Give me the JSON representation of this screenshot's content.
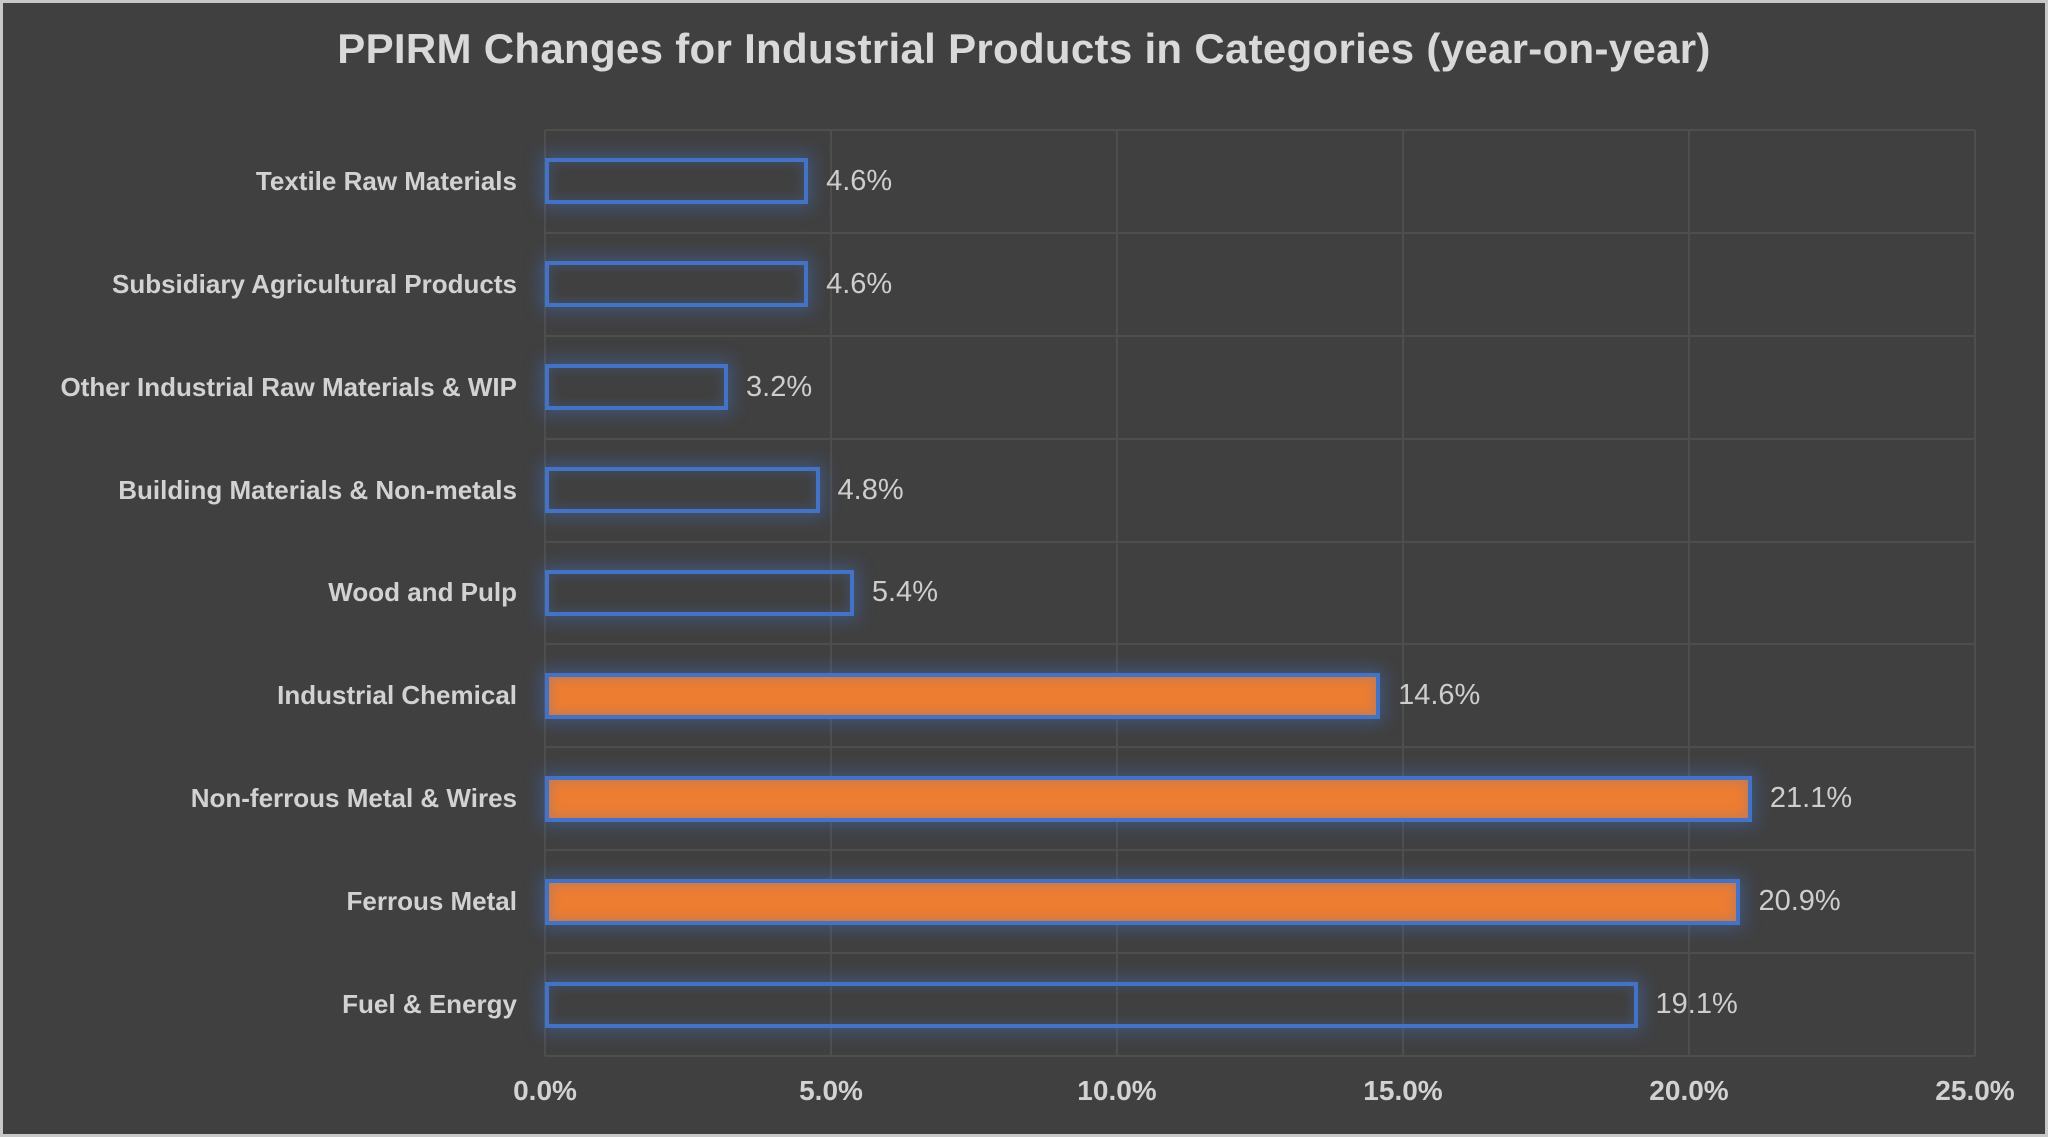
{
  "chart_data": {
    "type": "bar",
    "orientation": "horizontal",
    "title": "PPIRM Changes for Industrial Products in Categories (year-on-year)",
    "categories": [
      "Textile Raw Materials",
      "Subsidiary Agricultural Products",
      "Other Industrial Raw Materials & WIP",
      "Building Materials & Non-metals",
      "Wood and Pulp",
      "Industrial Chemical",
      "Non-ferrous Metal & Wires",
      "Ferrous Metal",
      "Fuel & Energy"
    ],
    "values": [
      4.6,
      4.6,
      3.2,
      4.8,
      5.4,
      14.6,
      21.1,
      20.9,
      19.1
    ],
    "data_labels": [
      "4.6%",
      "4.6%",
      "3.2%",
      "4.8%",
      "5.4%",
      "14.6%",
      "21.1%",
      "20.9%",
      "19.1%"
    ],
    "bar_fills": [
      "none",
      "none",
      "none",
      "none",
      "none",
      "orange",
      "orange",
      "orange",
      "none"
    ],
    "xlim": [
      0,
      25
    ],
    "x_ticks": [
      0,
      5,
      10,
      15,
      20,
      25
    ],
    "x_tick_labels": [
      "0.0%",
      "5.0%",
      "10.0%",
      "15.0%",
      "20.0%",
      "25.0%"
    ],
    "grid": "major-horizontal-and-vertical",
    "legend": "none"
  },
  "colors": {
    "background": "#404040",
    "frame_border": "#c8c8c8",
    "gridline": "#4e4e4e",
    "bar_fill_orange": "#ed7d31",
    "bar_border_blue": "#4472c4",
    "title_text": "#d9d9d9",
    "label_text": "#d2d2d2",
    "value_text": "#cdcdcd"
  }
}
